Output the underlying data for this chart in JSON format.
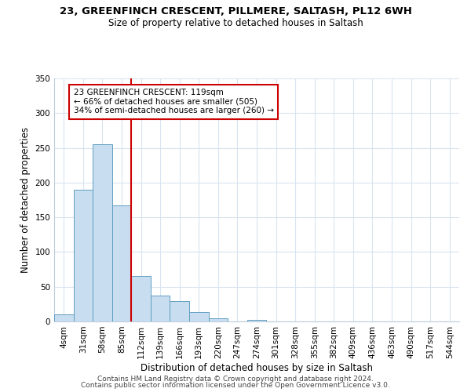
{
  "title": "23, GREENFINCH CRESCENT, PILLMERE, SALTASH, PL12 6WH",
  "subtitle": "Size of property relative to detached houses in Saltash",
  "xlabel": "Distribution of detached houses by size in Saltash",
  "ylabel": "Number of detached properties",
  "bar_labels": [
    "4sqm",
    "31sqm",
    "58sqm",
    "85sqm",
    "112sqm",
    "139sqm",
    "166sqm",
    "193sqm",
    "220sqm",
    "247sqm",
    "274sqm",
    "301sqm",
    "328sqm",
    "355sqm",
    "382sqm",
    "409sqm",
    "436sqm",
    "463sqm",
    "490sqm",
    "517sqm",
    "544sqm"
  ],
  "bar_values": [
    10,
    190,
    255,
    167,
    65,
    37,
    29,
    13,
    5,
    0,
    2,
    0,
    0,
    0,
    0,
    0,
    0,
    0,
    0,
    0,
    0
  ],
  "bar_color": "#c8ddf0",
  "bar_edge_color": "#5f9ec0",
  "vline_x": 3.5,
  "vline_color": "#cc0000",
  "annotation_line1": "23 GREENFINCH CRESCENT: 119sqm",
  "annotation_line2": "← 66% of detached houses are smaller (505)",
  "annotation_line3": "34% of semi-detached houses are larger (260) →",
  "annotation_box_color": "white",
  "annotation_box_edge_color": "#cc0000",
  "ylim": [
    0,
    350
  ],
  "yticks": [
    0,
    50,
    100,
    150,
    200,
    250,
    300,
    350
  ],
  "footer1": "Contains HM Land Registry data © Crown copyright and database right 2024.",
  "footer2": "Contains public sector information licensed under the Open Government Licence v3.0.",
  "background_color": "#ffffff",
  "grid_color": "#d8e4f0",
  "title_fontsize": 9.5,
  "subtitle_fontsize": 8.5,
  "axis_label_fontsize": 8.5,
  "tick_fontsize": 7.5,
  "annotation_fontsize": 7.5,
  "footer_fontsize": 6.5
}
